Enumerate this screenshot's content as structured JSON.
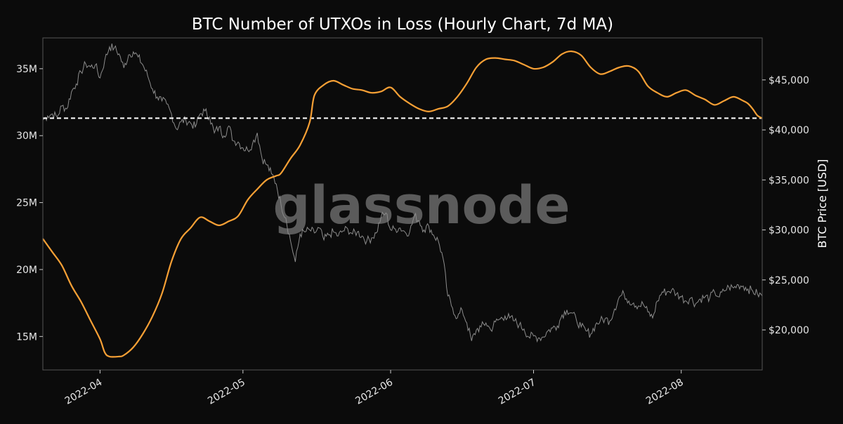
{
  "chart_data": {
    "type": "line",
    "title": "BTC Number of UTXOs in Loss (Hourly Chart, 7d MA)",
    "watermark": "glassnode",
    "xlabel": "",
    "y_left_label": "",
    "y_right_label": "BTC Price [USD]",
    "x_range": [
      "2022-03-20",
      "2022-08-18"
    ],
    "x_ticks": [
      {
        "date": "2022-04-01",
        "label": "2022-04"
      },
      {
        "date": "2022-05-01",
        "label": "2022-05"
      },
      {
        "date": "2022-06-01",
        "label": "2022-06"
      },
      {
        "date": "2022-07-01",
        "label": "2022-07"
      },
      {
        "date": "2022-08-01",
        "label": "2022-08"
      }
    ],
    "y_left": {
      "range": [
        12.5,
        37.3
      ],
      "ticks": [
        15,
        20,
        25,
        30,
        35
      ],
      "tick_labels": [
        "15M",
        "20M",
        "25M",
        "30M",
        "35M"
      ],
      "unit": "M"
    },
    "y_right": {
      "range": [
        16000,
        49200
      ],
      "ticks": [
        20000,
        25000,
        30000,
        35000,
        40000,
        45000
      ],
      "tick_labels": [
        "$20,000",
        "$25,000",
        "$30,000",
        "$35,000",
        "$40,000",
        "$45,000"
      ]
    },
    "reference_line": {
      "y_left": 31.3,
      "style": "dashed",
      "color": "#ffffff"
    },
    "grid": false,
    "colors": {
      "utxo_series": "#f7a035",
      "price_series": "#8c8c8c",
      "background": "#0b0b0b",
      "frame": "#555555"
    },
    "series": [
      {
        "id": "utxos_in_loss",
        "axis": "left",
        "color": "#f7a035",
        "points": [
          [
            "2022-03-20",
            22.3
          ],
          [
            "2022-03-22",
            21.3
          ],
          [
            "2022-03-24",
            20.3
          ],
          [
            "2022-03-26",
            18.8
          ],
          [
            "2022-03-28",
            17.6
          ],
          [
            "2022-03-30",
            16.2
          ],
          [
            "2022-04-01",
            14.8
          ],
          [
            "2022-04-02",
            13.8
          ],
          [
            "2022-04-03",
            13.5
          ],
          [
            "2022-04-05",
            13.5
          ],
          [
            "2022-04-06",
            13.6
          ],
          [
            "2022-04-08",
            14.2
          ],
          [
            "2022-04-10",
            15.2
          ],
          [
            "2022-04-12",
            16.5
          ],
          [
            "2022-04-14",
            18.2
          ],
          [
            "2022-04-16",
            20.6
          ],
          [
            "2022-04-18",
            22.3
          ],
          [
            "2022-04-20",
            23.1
          ],
          [
            "2022-04-22",
            23.9
          ],
          [
            "2022-04-24",
            23.6
          ],
          [
            "2022-04-26",
            23.3
          ],
          [
            "2022-04-28",
            23.6
          ],
          [
            "2022-04-30",
            24.0
          ],
          [
            "2022-05-02",
            25.2
          ],
          [
            "2022-05-04",
            26.0
          ],
          [
            "2022-05-06",
            26.7
          ],
          [
            "2022-05-08",
            27.0
          ],
          [
            "2022-05-09",
            27.2
          ],
          [
            "2022-05-11",
            28.3
          ],
          [
            "2022-05-13",
            29.3
          ],
          [
            "2022-05-15",
            31.0
          ],
          [
            "2022-05-16",
            33.0
          ],
          [
            "2022-05-18",
            33.8
          ],
          [
            "2022-05-20",
            34.1
          ],
          [
            "2022-05-22",
            33.8
          ],
          [
            "2022-05-24",
            33.5
          ],
          [
            "2022-05-26",
            33.4
          ],
          [
            "2022-05-28",
            33.2
          ],
          [
            "2022-05-30",
            33.3
          ],
          [
            "2022-06-01",
            33.6
          ],
          [
            "2022-06-03",
            32.9
          ],
          [
            "2022-06-05",
            32.4
          ],
          [
            "2022-06-07",
            32.0
          ],
          [
            "2022-06-09",
            31.8
          ],
          [
            "2022-06-11",
            32.0
          ],
          [
            "2022-06-13",
            32.2
          ],
          [
            "2022-06-15",
            32.9
          ],
          [
            "2022-06-17",
            33.9
          ],
          [
            "2022-06-19",
            35.1
          ],
          [
            "2022-06-21",
            35.7
          ],
          [
            "2022-06-23",
            35.8
          ],
          [
            "2022-06-25",
            35.7
          ],
          [
            "2022-06-27",
            35.6
          ],
          [
            "2022-06-29",
            35.3
          ],
          [
            "2022-07-01",
            35.0
          ],
          [
            "2022-07-03",
            35.1
          ],
          [
            "2022-07-05",
            35.5
          ],
          [
            "2022-07-07",
            36.1
          ],
          [
            "2022-07-09",
            36.3
          ],
          [
            "2022-07-11",
            36.0
          ],
          [
            "2022-07-13",
            35.1
          ],
          [
            "2022-07-15",
            34.6
          ],
          [
            "2022-07-17",
            34.8
          ],
          [
            "2022-07-19",
            35.1
          ],
          [
            "2022-07-21",
            35.2
          ],
          [
            "2022-07-23",
            34.8
          ],
          [
            "2022-07-25",
            33.7
          ],
          [
            "2022-07-27",
            33.2
          ],
          [
            "2022-07-29",
            32.9
          ],
          [
            "2022-07-31",
            33.2
          ],
          [
            "2022-08-02",
            33.4
          ],
          [
            "2022-08-04",
            33.0
          ],
          [
            "2022-08-06",
            32.7
          ],
          [
            "2022-08-08",
            32.3
          ],
          [
            "2022-08-10",
            32.6
          ],
          [
            "2022-08-12",
            32.9
          ],
          [
            "2022-08-14",
            32.6
          ],
          [
            "2022-08-15",
            32.4
          ],
          [
            "2022-08-16",
            32.0
          ],
          [
            "2022-08-17",
            31.5
          ],
          [
            "2022-08-18",
            31.3
          ]
        ]
      },
      {
        "id": "btc_price",
        "axis": "right",
        "color": "#8c8c8c",
        "points": [
          [
            "2022-03-20",
            41000
          ],
          [
            "2022-03-21",
            41400
          ],
          [
            "2022-03-22",
            41600
          ],
          [
            "2022-03-23",
            41300
          ],
          [
            "2022-03-24",
            42400
          ],
          [
            "2022-03-25",
            42100
          ],
          [
            "2022-03-26",
            43800
          ],
          [
            "2022-03-27",
            44600
          ],
          [
            "2022-03-28",
            45800
          ],
          [
            "2022-03-29",
            46600
          ],
          [
            "2022-03-30",
            46300
          ],
          [
            "2022-03-31",
            46500
          ],
          [
            "2022-04-01",
            45200
          ],
          [
            "2022-04-02",
            47000
          ],
          [
            "2022-04-03",
            48300
          ],
          [
            "2022-04-04",
            48200
          ],
          [
            "2022-04-05",
            47600
          ],
          [
            "2022-04-06",
            46200
          ],
          [
            "2022-04-07",
            47500
          ],
          [
            "2022-04-08",
            47800
          ],
          [
            "2022-04-09",
            47300
          ],
          [
            "2022-04-10",
            46500
          ],
          [
            "2022-04-11",
            45400
          ],
          [
            "2022-04-12",
            44100
          ],
          [
            "2022-04-13",
            43300
          ],
          [
            "2022-04-14",
            42900
          ],
          [
            "2022-04-15",
            42600
          ],
          [
            "2022-04-16",
            41600
          ],
          [
            "2022-04-17",
            40100
          ],
          [
            "2022-04-18",
            40800
          ],
          [
            "2022-04-19",
            41000
          ],
          [
            "2022-04-20",
            40700
          ],
          [
            "2022-04-21",
            40300
          ],
          [
            "2022-04-22",
            41600
          ],
          [
            "2022-04-23",
            41900
          ],
          [
            "2022-04-24",
            41300
          ],
          [
            "2022-04-25",
            39700
          ],
          [
            "2022-04-26",
            40300
          ],
          [
            "2022-04-27",
            39400
          ],
          [
            "2022-04-28",
            40400
          ],
          [
            "2022-04-29",
            38900
          ],
          [
            "2022-04-30",
            38800
          ],
          [
            "2022-05-01",
            38200
          ],
          [
            "2022-05-02",
            38000
          ],
          [
            "2022-05-03",
            38600
          ],
          [
            "2022-05-04",
            39700
          ],
          [
            "2022-05-05",
            37200
          ],
          [
            "2022-05-06",
            36500
          ],
          [
            "2022-05-07",
            35600
          ],
          [
            "2022-05-08",
            34600
          ],
          [
            "2022-05-09",
            32500
          ],
          [
            "2022-05-10",
            31200
          ],
          [
            "2022-05-11",
            28900
          ],
          [
            "2022-05-12",
            26800
          ],
          [
            "2022-05-13",
            29600
          ],
          [
            "2022-05-14",
            29800
          ],
          [
            "2022-05-15",
            30000
          ],
          [
            "2022-05-16",
            29700
          ],
          [
            "2022-05-17",
            30200
          ],
          [
            "2022-05-18",
            29000
          ],
          [
            "2022-05-19",
            29500
          ],
          [
            "2022-05-20",
            29800
          ],
          [
            "2022-05-21",
            29400
          ],
          [
            "2022-05-22",
            29900
          ],
          [
            "2022-05-23",
            30100
          ],
          [
            "2022-05-24",
            29600
          ],
          [
            "2022-05-25",
            29800
          ],
          [
            "2022-05-26",
            29400
          ],
          [
            "2022-05-27",
            28900
          ],
          [
            "2022-05-28",
            29200
          ],
          [
            "2022-05-29",
            29700
          ],
          [
            "2022-05-30",
            31300
          ],
          [
            "2022-05-31",
            31700
          ],
          [
            "2022-06-01",
            30000
          ],
          [
            "2022-06-02",
            30100
          ],
          [
            "2022-06-03",
            30200
          ],
          [
            "2022-06-04",
            29800
          ],
          [
            "2022-06-05",
            29800
          ],
          [
            "2022-06-06",
            31400
          ],
          [
            "2022-06-07",
            30900
          ],
          [
            "2022-06-08",
            30000
          ],
          [
            "2022-06-09",
            30400
          ],
          [
            "2022-06-10",
            29500
          ],
          [
            "2022-06-11",
            28900
          ],
          [
            "2022-06-12",
            27200
          ],
          [
            "2022-06-13",
            23400
          ],
          [
            "2022-06-14",
            22200
          ],
          [
            "2022-06-15",
            21200
          ],
          [
            "2022-06-16",
            22000
          ],
          [
            "2022-06-17",
            20700
          ],
          [
            "2022-06-18",
            18900
          ],
          [
            "2022-06-19",
            20000
          ],
          [
            "2022-06-20",
            20300
          ],
          [
            "2022-06-21",
            20700
          ],
          [
            "2022-06-22",
            20000
          ],
          [
            "2022-06-23",
            20800
          ],
          [
            "2022-06-24",
            21100
          ],
          [
            "2022-06-25",
            21400
          ],
          [
            "2022-06-26",
            21200
          ],
          [
            "2022-06-27",
            20900
          ],
          [
            "2022-06-28",
            20500
          ],
          [
            "2022-06-29",
            20100
          ],
          [
            "2022-06-30",
            19300
          ],
          [
            "2022-07-01",
            19400
          ],
          [
            "2022-07-02",
            19200
          ],
          [
            "2022-07-03",
            19300
          ],
          [
            "2022-07-04",
            19900
          ],
          [
            "2022-07-05",
            20200
          ],
          [
            "2022-07-06",
            20400
          ],
          [
            "2022-07-07",
            21500
          ],
          [
            "2022-07-08",
            22000
          ],
          [
            "2022-07-09",
            21700
          ],
          [
            "2022-07-10",
            21000
          ],
          [
            "2022-07-11",
            20300
          ],
          [
            "2022-07-12",
            19900
          ],
          [
            "2022-07-13",
            19600
          ],
          [
            "2022-07-14",
            20500
          ],
          [
            "2022-07-15",
            20900
          ],
          [
            "2022-07-16",
            21100
          ],
          [
            "2022-07-17",
            20900
          ],
          [
            "2022-07-18",
            22100
          ],
          [
            "2022-07-19",
            23300
          ],
          [
            "2022-07-20",
            23600
          ],
          [
            "2022-07-21",
            22900
          ],
          [
            "2022-07-22",
            22700
          ],
          [
            "2022-07-23",
            22400
          ],
          [
            "2022-07-24",
            22600
          ],
          [
            "2022-07-25",
            21800
          ],
          [
            "2022-07-26",
            21200
          ],
          [
            "2022-07-27",
            22900
          ],
          [
            "2022-07-28",
            23800
          ],
          [
            "2022-07-29",
            23800
          ],
          [
            "2022-07-30",
            24000
          ],
          [
            "2022-07-31",
            23600
          ],
          [
            "2022-08-01",
            23300
          ],
          [
            "2022-08-02",
            22900
          ],
          [
            "2022-08-03",
            23200
          ],
          [
            "2022-08-04",
            22600
          ],
          [
            "2022-08-05",
            23100
          ],
          [
            "2022-08-06",
            23300
          ],
          [
            "2022-08-07",
            23200
          ],
          [
            "2022-08-08",
            23800
          ],
          [
            "2022-08-09",
            23300
          ],
          [
            "2022-08-10",
            23900
          ],
          [
            "2022-08-11",
            24300
          ],
          [
            "2022-08-12",
            24200
          ],
          [
            "2022-08-13",
            24500
          ],
          [
            "2022-08-14",
            24400
          ],
          [
            "2022-08-15",
            24100
          ],
          [
            "2022-08-16",
            23900
          ],
          [
            "2022-08-17",
            23600
          ],
          [
            "2022-08-18",
            23400
          ]
        ]
      }
    ]
  }
}
